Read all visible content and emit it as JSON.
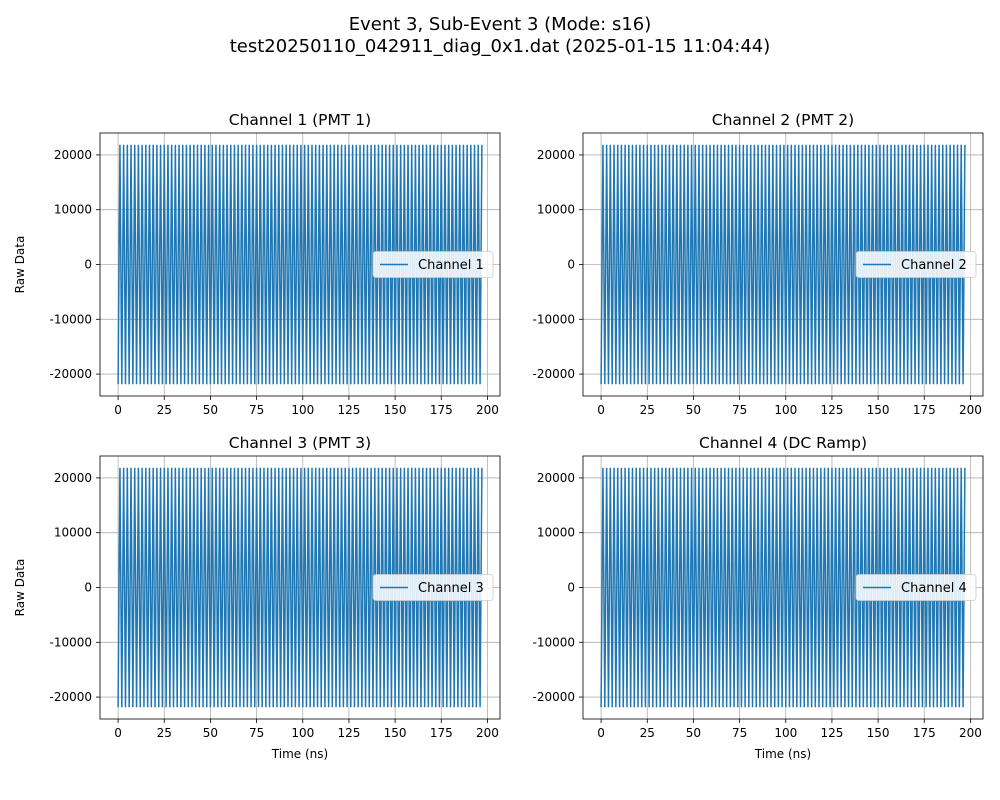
{
  "figure": {
    "title_line1": "Event 3, Sub-Event 3 (Mode: s16)",
    "title_line2": "test20250110_042911_diag_0x1.dat (2025-01-15 11:04:44)"
  },
  "colors": {
    "series": "#1f77b4",
    "grid": "#b0b0b0"
  },
  "chart_data": [
    {
      "type": "line",
      "title": "Channel 1 (PMT 1)",
      "xlabel": "",
      "ylabel": "Raw Data",
      "xlim": [
        -9.8,
        206.8
      ],
      "ylim": [
        -24000,
        24000
      ],
      "xticks": [
        0,
        25,
        50,
        75,
        100,
        125,
        150,
        175,
        200
      ],
      "yticks": [
        -20000,
        -10000,
        0,
        10000,
        20000
      ],
      "grid": true,
      "legend_position": "center-right",
      "series": [
        {
          "name": "Channel 1",
          "pattern": "alternating square wave between -21845 and 21845, period 4 ns",
          "x_start": 0,
          "x_end": 197,
          "low": -21845,
          "high": 21845,
          "period": 4
        }
      ]
    },
    {
      "type": "line",
      "title": "Channel 2 (PMT 2)",
      "xlabel": "",
      "ylabel": "",
      "xlim": [
        -9.8,
        206.8
      ],
      "ylim": [
        -24000,
        24000
      ],
      "xticks": [
        0,
        25,
        50,
        75,
        100,
        125,
        150,
        175,
        200
      ],
      "yticks": [
        -20000,
        -10000,
        0,
        10000,
        20000
      ],
      "grid": true,
      "legend_position": "center-right",
      "series": [
        {
          "name": "Channel 2",
          "pattern": "alternating square wave between -21845 and 21845, period 4 ns",
          "x_start": 0,
          "x_end": 197,
          "low": -21845,
          "high": 21845,
          "period": 4
        }
      ]
    },
    {
      "type": "line",
      "title": "Channel 3 (PMT 3)",
      "xlabel": "Time (ns)",
      "ylabel": "Raw Data",
      "xlim": [
        -9.8,
        206.8
      ],
      "ylim": [
        -24000,
        24000
      ],
      "xticks": [
        0,
        25,
        50,
        75,
        100,
        125,
        150,
        175,
        200
      ],
      "yticks": [
        -20000,
        -10000,
        0,
        10000,
        20000
      ],
      "grid": true,
      "legend_position": "center-right",
      "series": [
        {
          "name": "Channel 3",
          "pattern": "alternating square wave between -21845 and 21845, period 4 ns",
          "x_start": 0,
          "x_end": 197,
          "low": -21845,
          "high": 21845,
          "period": 4
        }
      ]
    },
    {
      "type": "line",
      "title": "Channel 4 (DC Ramp)",
      "xlabel": "Time (ns)",
      "ylabel": "",
      "xlim": [
        -9.8,
        206.8
      ],
      "ylim": [
        -24000,
        24000
      ],
      "xticks": [
        0,
        25,
        50,
        75,
        100,
        125,
        150,
        175,
        200
      ],
      "yticks": [
        -20000,
        -10000,
        0,
        10000,
        20000
      ],
      "grid": true,
      "legend_position": "center-right",
      "series": [
        {
          "name": "Channel 4",
          "pattern": "alternating square wave between -21845 and 21845, period 4 ns",
          "x_start": 0,
          "x_end": 197,
          "low": -21845,
          "high": 21845,
          "period": 4
        }
      ]
    }
  ]
}
